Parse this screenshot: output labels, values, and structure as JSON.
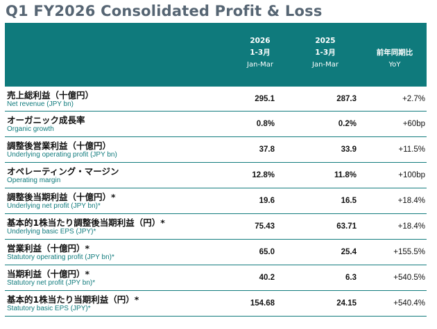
{
  "title": "Q1 FY2026 Consolidated Profit & Loss",
  "header": {
    "col1": {
      "year": "2026",
      "period": "1-3月",
      "sub": "Jan-Mar"
    },
    "col2": {
      "year": "2025",
      "period": "1-3月",
      "sub": "Jan-Mar"
    },
    "col3": {
      "label": "前年同期比",
      "sub": "YoY"
    }
  },
  "rows": [
    {
      "jp": "売上総利益（十億円）",
      "en": "Net revenue (JPY bn)",
      "v2026": "295.1",
      "v2025": "287.3",
      "yoy": "+2.7%"
    },
    {
      "jp": "オーガニック成長率",
      "en": "Organic growth",
      "v2026": "0.8%",
      "v2025": "0.2%",
      "yoy": "+60bp"
    },
    {
      "jp": "調整後営業利益（十億円）",
      "en": "Underlying operating profit (JPY bn)",
      "v2026": "37.8",
      "v2025": "33.9",
      "yoy": "+11.5%"
    },
    {
      "jp": "オペレーティング・マージン",
      "en": "Operating margin",
      "v2026": "12.8%",
      "v2025": "11.8%",
      "yoy": "+100bp"
    },
    {
      "jp": "調整後当期利益（十億円）*",
      "en": "Underlying net profit (JPY bn)*",
      "v2026": "19.6",
      "v2025": "16.5",
      "yoy": "+18.4%"
    },
    {
      "jp": "基本的1株当たり調整後当期利益（円）*",
      "en": "Underlying basic EPS (JPY)*",
      "v2026": "75.43",
      "v2025": "63.71",
      "yoy": "+18.4%"
    },
    {
      "jp": "営業利益（十億円）*",
      "en": "Statutory operating profit (JPY bn)*",
      "v2026": "65.0",
      "v2025": "25.4",
      "yoy": "+155.5%"
    },
    {
      "jp": "当期利益（十億円）*",
      "en": "Statutory net profit (JPY bn)*",
      "v2026": "40.2",
      "v2025": "6.3",
      "yoy": "+540.5%"
    },
    {
      "jp": "基本的1株当たり当期利益（円）*",
      "en": "Statutory basic EPS (JPY)*",
      "v2026": "154.68",
      "v2025": "24.15",
      "yoy": "+540.4%"
    }
  ]
}
